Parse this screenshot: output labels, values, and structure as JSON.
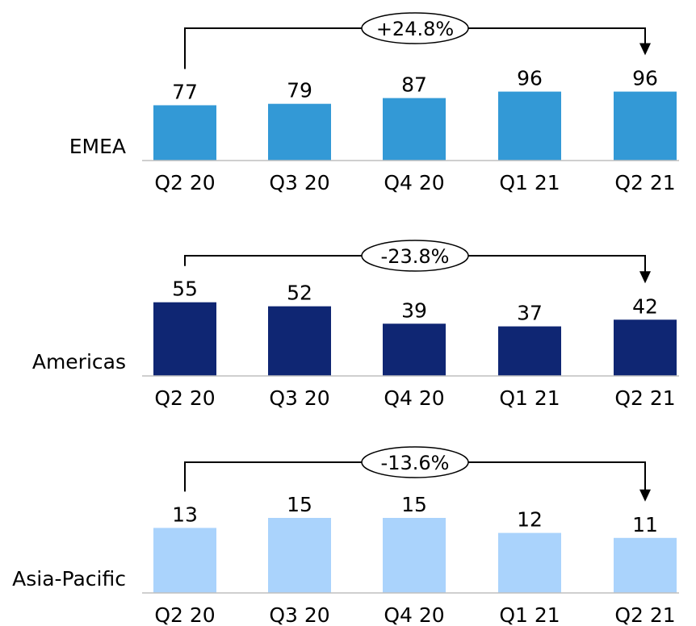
{
  "chart_data": [
    {
      "type": "bar",
      "region": "EMEA",
      "categories": [
        "Q2 20",
        "Q3 20",
        "Q4 20",
        "Q1 21",
        "Q2 21"
      ],
      "values": [
        77,
        79,
        87,
        96,
        96
      ],
      "change_label": "+24.8%",
      "color": "#3399D6"
    },
    {
      "type": "bar",
      "region": "Americas",
      "categories": [
        "Q2 20",
        "Q3 20",
        "Q4 20",
        "Q1 21",
        "Q2 21"
      ],
      "values": [
        55,
        52,
        39,
        37,
        42
      ],
      "change_label": "-23.8%",
      "color": "#0F2673"
    },
    {
      "type": "bar",
      "region": "Asia-Pacific",
      "categories": [
        "Q2 20",
        "Q3 20",
        "Q4 20",
        "Q1 21",
        "Q2 21"
      ],
      "values": [
        13,
        15,
        15,
        12,
        11
      ],
      "change_label": "-13.6%",
      "color": "#AAD3FC"
    }
  ]
}
